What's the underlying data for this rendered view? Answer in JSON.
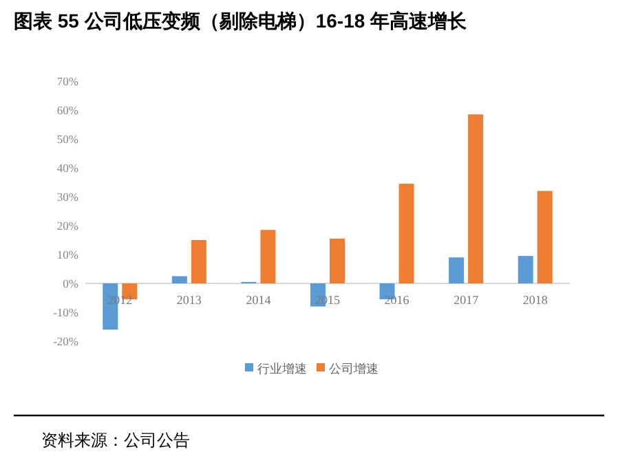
{
  "chart_data": {
    "type": "bar",
    "title": "图表 55 公司低压变频（剔除电梯）16-18 年高速增长",
    "categories": [
      "2012",
      "2013",
      "2014",
      "2015",
      "2016",
      "2017",
      "2018"
    ],
    "series": [
      {
        "name": "行业增速",
        "color": "#5b9bd5",
        "values": [
          -16,
          2.5,
          0.5,
          -8,
          -5.5,
          9,
          9.5
        ]
      },
      {
        "name": "公司增速",
        "color": "#ed7d31",
        "values": [
          -5.5,
          15,
          18.5,
          15.5,
          34.5,
          58.5,
          32
        ]
      }
    ],
    "ylim": [
      -20,
      70
    ],
    "yticks": [
      {
        "value": -20,
        "label": "-20%"
      },
      {
        "value": -10,
        "label": "-10%"
      },
      {
        "value": 0,
        "label": "0%"
      },
      {
        "value": 10,
        "label": "10%"
      },
      {
        "value": 20,
        "label": "20%"
      },
      {
        "value": 30,
        "label": "30%"
      },
      {
        "value": 40,
        "label": "40%"
      },
      {
        "value": 50,
        "label": "50%"
      },
      {
        "value": 60,
        "label": "60%"
      },
      {
        "value": 70,
        "label": "70%"
      }
    ],
    "grid": false,
    "legend": "bottom",
    "annotations": [
      "资料来源：公司公告"
    ]
  }
}
